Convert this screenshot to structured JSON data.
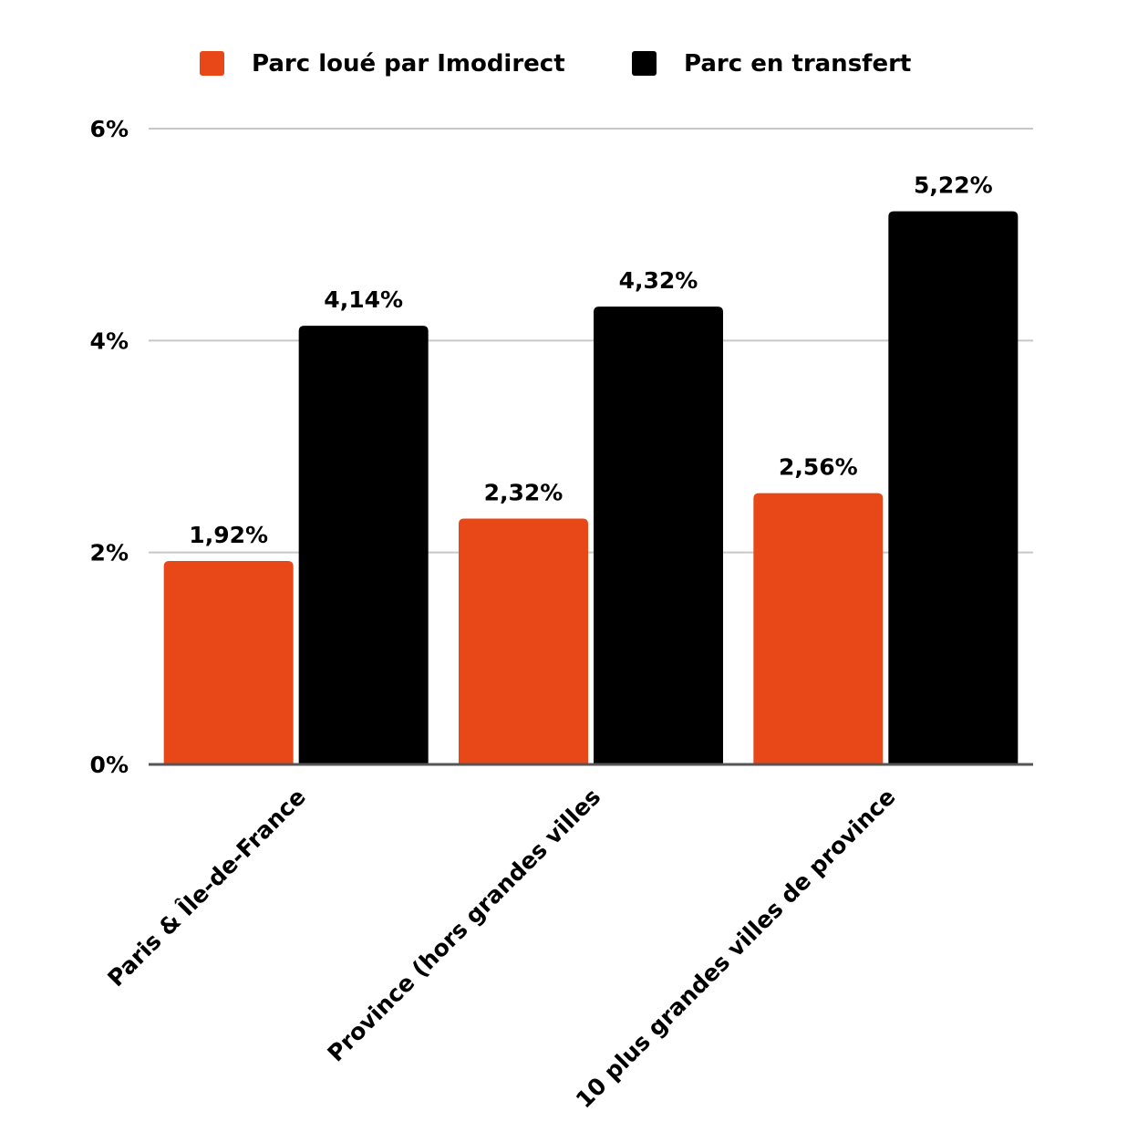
{
  "chart_data": {
    "type": "bar",
    "categories": [
      "Paris & Île-de-France",
      "Province (hors grandes villes",
      "10 plus grandes villes de province"
    ],
    "series": [
      {
        "name": "Parc loué par Imodirect",
        "values": [
          1.92,
          2.32,
          2.56
        ],
        "labels": [
          "1,92%",
          "2,32%",
          "2,56%"
        ],
        "color": "#e84817"
      },
      {
        "name": "Parc en transfert",
        "values": [
          4.14,
          4.32,
          5.22
        ],
        "labels": [
          "4,14%",
          "4,32%",
          "5,22%"
        ],
        "color": "#000000"
      }
    ],
    "y_ticks": [
      {
        "value": 0,
        "label": "0%"
      },
      {
        "value": 2,
        "label": "2%"
      },
      {
        "value": 4,
        "label": "4%"
      },
      {
        "value": 6,
        "label": "6%"
      }
    ],
    "ylim": [
      0,
      6
    ],
    "grid": true,
    "gridline_color": "#c8c8c8",
    "legend_placement": "top-center",
    "title": "",
    "xlabel": "",
    "ylabel": ""
  }
}
